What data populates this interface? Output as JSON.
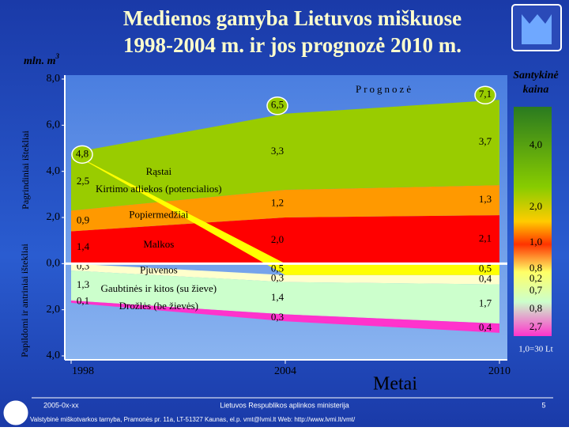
{
  "chart_data": {
    "type": "area",
    "title": [
      "Medienos gamyba Lietuvos miškuose",
      "1998-2004 m. ir jos prognozė 2010 m."
    ],
    "y_unit": "mln. m",
    "y_unit_sup": "3",
    "x_label": "Metai",
    "forecast_label": "Prognozė",
    "axis_groups": [
      "Pagrindiniai ištekliai",
      "Papildomi ir antriniai ištekliai"
    ],
    "x": [
      1998,
      2004,
      2010
    ],
    "xlim": [
      1998,
      2010
    ],
    "xticks": [
      1998,
      2004,
      2010
    ],
    "ylim": [
      -4,
      8
    ],
    "yticks": [
      {
        "value": 8,
        "label": "8,0"
      },
      {
        "value": 6,
        "label": "6,0"
      },
      {
        "value": 4,
        "label": "4,0"
      },
      {
        "value": 2,
        "label": "2,0"
      },
      {
        "value": 0,
        "label": "0,0"
      },
      {
        "value": -2,
        "label": "2,0"
      },
      {
        "value": -4,
        "label": "4,0"
      }
    ],
    "series": [
      {
        "name": "Malkos",
        "color": "#ff0000",
        "values": [
          1.4,
          2.0,
          2.1
        ],
        "value_labels": [
          "1,4",
          "2,0",
          "2,1"
        ]
      },
      {
        "name": "Popiermedžiai",
        "color": "#ff9900",
        "values": [
          0.9,
          1.2,
          1.3
        ],
        "value_labels": [
          "0,9",
          "1,2",
          "1,3"
        ]
      },
      {
        "name": "Rąstai",
        "color": "#99cc00",
        "values": [
          2.5,
          3.3,
          3.7
        ],
        "value_labels": [
          "2,5",
          "3,3",
          "3,7"
        ]
      },
      {
        "name": "Kirtimo atliekos (potencialios)",
        "color": "#ffff00",
        "values": [
          0,
          -0.5,
          -0.5
        ],
        "value_labels": [
          null,
          "0,5",
          "0,5"
        ]
      },
      {
        "name": "Pjuvenos",
        "color": "#ffffcc",
        "values": [
          -0.3,
          -0.3,
          -0.4
        ],
        "value_labels": [
          "0,3",
          "0,3",
          "0,4"
        ]
      },
      {
        "name": "Gaubtinės ir kitos (su žieve)",
        "color": "#ccffcc",
        "values": [
          -1.3,
          -1.4,
          -1.7
        ],
        "value_labels": [
          "1,3",
          "1,4",
          "1,7"
        ]
      },
      {
        "name": "Drožlės (be žievės)",
        "color": "#ff33cc",
        "values": [
          -0.1,
          -0.3,
          -0.4
        ],
        "value_labels": [
          "0,1",
          "0,3",
          "0,4"
        ]
      }
    ],
    "totals": {
      "values": [
        4.8,
        6.5,
        7.1
      ],
      "value_labels": [
        "4,8",
        "6,5",
        "7,1"
      ]
    },
    "price": {
      "title": [
        "Santykinė",
        "kaina"
      ],
      "labels": [
        "4,0",
        "2,0",
        "1,0",
        "0,8",
        "0,2",
        "0,7",
        "0,8",
        "2,7"
      ],
      "note": "1,0=30 Lt"
    }
  },
  "footer": {
    "date": "2005-0x-xx",
    "org": "Lietuvos Respublikos aplinkos ministerija",
    "page": "5",
    "address": "Valstybinė miškotvarkos tarnyba, Pramonės pr. 11a, LT-51327 Kaunas, el.p. vmt@lvmi.lt Web: http://www.lvmi.lt/vmt/"
  }
}
